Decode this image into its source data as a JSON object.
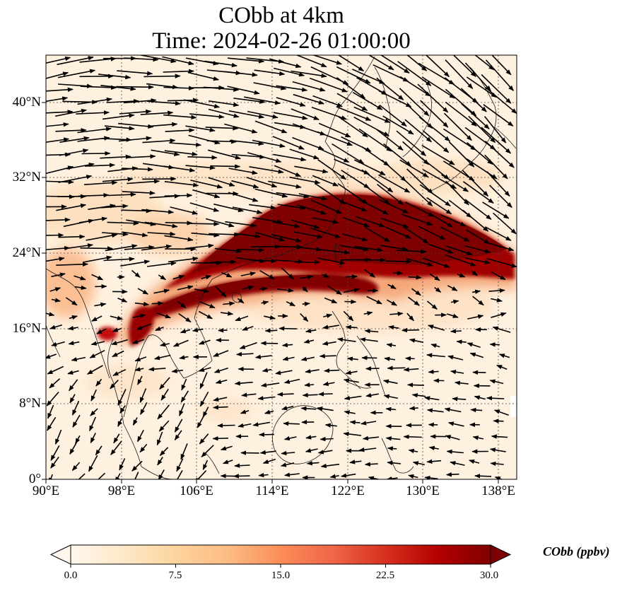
{
  "title_line1": "CObb at 4km",
  "title_line2": "Time: 2024-02-26 01:00:00",
  "map": {
    "lon_range": [
      90,
      140
    ],
    "lat_range": [
      0,
      45
    ],
    "lat_ticks": [
      "0°",
      "8°N",
      "16°N",
      "24°N",
      "32°N",
      "40°N"
    ],
    "lon_ticks": [
      "90°E",
      "98°E",
      "106°E",
      "114°E",
      "122°E",
      "130°E",
      "138°E"
    ],
    "gridlines": true,
    "field_colormap": "OrRd",
    "plume_color": "#7f0000",
    "background_field_color": "#fff1df"
  },
  "colorbar": {
    "label": "CObb (ppbv)",
    "ticks": [
      "0.0",
      "7.5",
      "15.0",
      "22.5",
      "30.0"
    ],
    "min": 0,
    "max": 30,
    "extend": "both",
    "colors": [
      "#fff7ec",
      "#fee8c8",
      "#fdd49e",
      "#fdbb84",
      "#fc8d59",
      "#ef6548",
      "#d7301f",
      "#b30000",
      "#7f0000"
    ]
  }
}
